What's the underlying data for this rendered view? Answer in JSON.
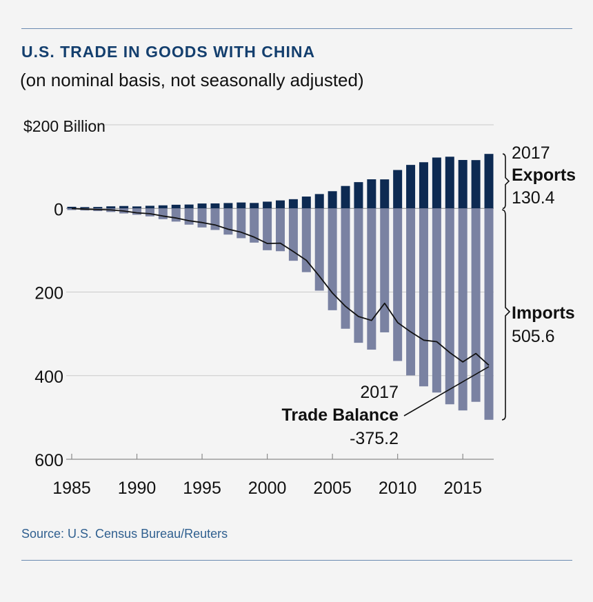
{
  "header": {
    "title": "U.S. TRADE IN GOODS WITH CHINA",
    "subtitle": "(on nominal basis, not seasonally adjusted)"
  },
  "footer": {
    "source": "Source: U.S. Census Bureau/Reuters"
  },
  "colors": {
    "exports": "#0d2a52",
    "imports": "#7a82a2",
    "balance_line": "#111111",
    "rules": "#6a8ab0",
    "title": "#143f6e",
    "source": "#2f5f8f"
  },
  "chart_data": {
    "type": "bar",
    "title": "U.S. TRADE IN GOODS WITH CHINA",
    "subtitle": "(on nominal basis, not seasonally adjusted)",
    "unit_label": "$200 Billion",
    "y_ticks": [
      {
        "value": 200,
        "label": "$200"
      },
      {
        "value": 0,
        "label": "0"
      },
      {
        "value": -200,
        "label": "200"
      },
      {
        "value": -400,
        "label": "400"
      },
      {
        "value": -600,
        "label": "600"
      }
    ],
    "ylim": [
      -600,
      200
    ],
    "x_ticks": [
      1985,
      1990,
      1995,
      2000,
      2005,
      2010,
      2015
    ],
    "xlim": [
      1985,
      2017
    ],
    "grid": "horizontal",
    "categories": [
      1985,
      1986,
      1987,
      1988,
      1989,
      1990,
      1991,
      1992,
      1993,
      1994,
      1995,
      1996,
      1997,
      1998,
      1999,
      2000,
      2001,
      2002,
      2003,
      2004,
      2005,
      2006,
      2007,
      2008,
      2009,
      2010,
      2011,
      2012,
      2013,
      2014,
      2015,
      2016,
      2017
    ],
    "series": [
      {
        "name": "Exports",
        "type": "bar",
        "values": [
          3.9,
          3.1,
          3.5,
          5.0,
          5.8,
          4.8,
          6.3,
          7.4,
          8.8,
          9.3,
          11.8,
          12.0,
          12.9,
          14.2,
          13.1,
          16.2,
          19.2,
          22.1,
          28.4,
          34.4,
          41.2,
          53.7,
          62.9,
          69.7,
          69.5,
          91.9,
          104.1,
          110.5,
          121.7,
          123.7,
          115.9,
          115.6,
          130.4
        ]
      },
      {
        "name": "Imports",
        "type": "bar",
        "values": [
          -3.9,
          -4.8,
          -6.3,
          -8.5,
          -12.0,
          -15.2,
          -19.0,
          -25.7,
          -31.5,
          -38.8,
          -45.5,
          -51.5,
          -62.6,
          -71.2,
          -81.8,
          -100.0,
          -102.3,
          -125.2,
          -152.4,
          -196.7,
          -243.5,
          -287.8,
          -321.4,
          -337.8,
          -296.4,
          -364.9,
          -399.4,
          -425.6,
          -440.4,
          -468.5,
          -483.2,
          -462.6,
          -505.6
        ]
      },
      {
        "name": "Trade Balance",
        "type": "line",
        "values": [
          0.0,
          -1.7,
          -2.8,
          -3.5,
          -6.2,
          -10.4,
          -12.7,
          -18.3,
          -22.8,
          -29.5,
          -33.8,
          -39.5,
          -49.7,
          -57.0,
          -68.7,
          -83.8,
          -83.1,
          -103.1,
          -124.1,
          -162.3,
          -202.3,
          -234.1,
          -258.5,
          -268.0,
          -226.9,
          -273.0,
          -295.3,
          -315.1,
          -318.7,
          -344.8,
          -367.3,
          -347.0,
          -375.2
        ]
      }
    ],
    "annotations": {
      "exports_year": "2017",
      "exports_label": "Exports",
      "exports_value": "130.4",
      "imports_label": "Imports",
      "imports_value": "505.6",
      "balance_year": "2017",
      "balance_label": "Trade Balance",
      "balance_value": "-375.2"
    }
  }
}
